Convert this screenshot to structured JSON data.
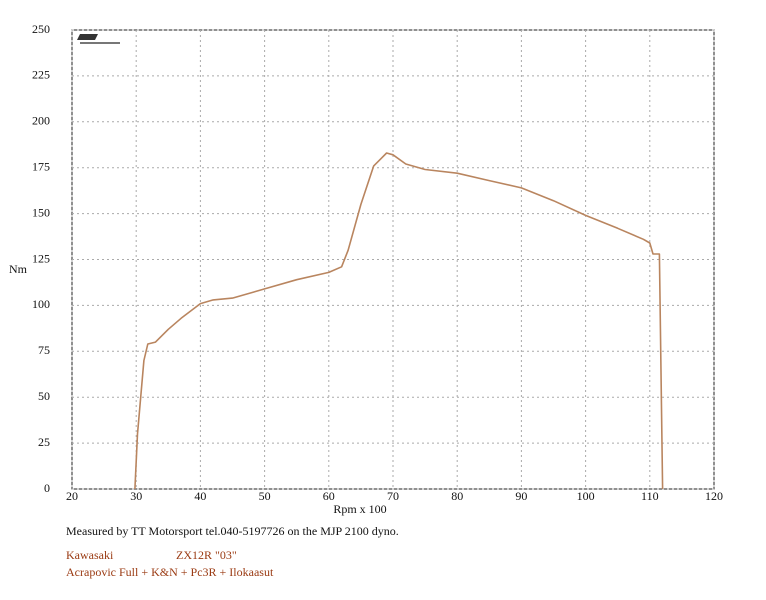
{
  "chart_data": {
    "type": "line",
    "y_label": "Nm",
    "x_label": "Rpm x 100",
    "note": "Measured by TT Motorsport tel.040-5197726 on the MJP 2100 dyno.",
    "make": "Kawasaki",
    "model": "ZX12R \"03\"",
    "modifications": "Acrapovic Full + K&N + Pc3R + Ilokaasut",
    "color": "#b9855f",
    "x": [
      29.8,
      30.2,
      31.2,
      31.8,
      33,
      35,
      37,
      40,
      42,
      45,
      50,
      55,
      60,
      62,
      63,
      65,
      67,
      69,
      70,
      72,
      75,
      80,
      85,
      90,
      95,
      100,
      105,
      109,
      110,
      110.5,
      111.5,
      112
    ],
    "values": [
      0,
      30,
      70,
      79,
      80,
      87,
      93,
      101,
      103,
      104,
      109,
      114,
      118,
      121,
      130,
      155,
      176,
      183,
      182,
      177,
      174,
      172,
      168,
      164,
      157,
      149,
      142,
      136,
      134,
      128,
      128,
      0
    ],
    "xlim": [
      20,
      120
    ],
    "ylim": [
      0,
      250
    ],
    "xticks": [
      20,
      30,
      40,
      50,
      60,
      70,
      80,
      90,
      100,
      110,
      120
    ],
    "yticks": [
      0,
      25,
      50,
      75,
      100,
      125,
      150,
      175,
      200,
      225,
      250
    ],
    "grid": true
  }
}
